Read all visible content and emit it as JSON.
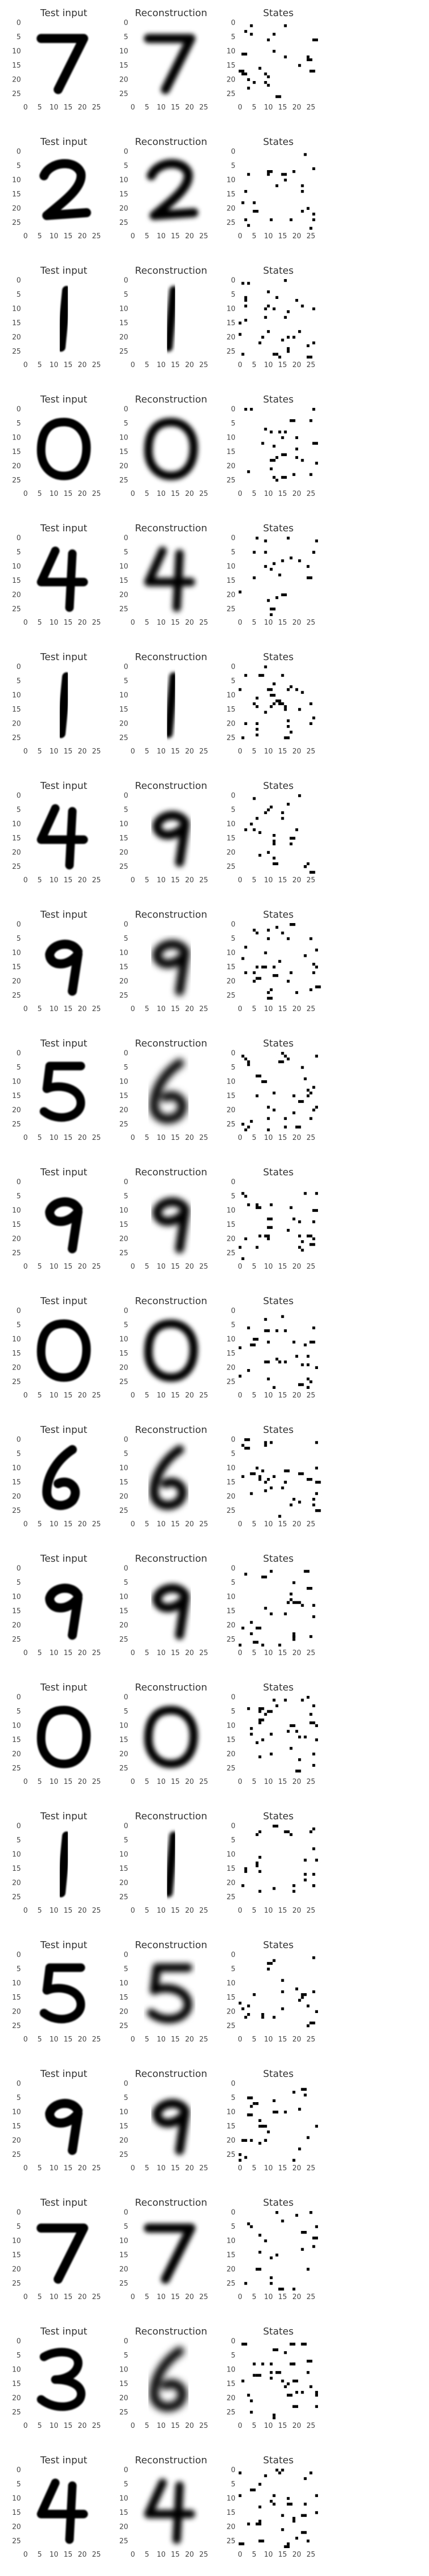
{
  "figure": {
    "layout": "20 rows x 3 panels",
    "background": "#ffffff",
    "ink_color": "#000000",
    "title_color": "#333333",
    "tick_color": "#444444"
  },
  "panel_titles": [
    "Test input",
    "Reconstruction",
    "States"
  ],
  "chart_data": {
    "type": "heatmap",
    "colormap": "gray_r",
    "grid": false,
    "axes": {
      "x_ticks": [
        0,
        5,
        10,
        15,
        20,
        25
      ],
      "y_ticks": [
        0,
        5,
        10,
        15,
        20,
        25
      ],
      "x_range": [
        0,
        27
      ],
      "y_range": [
        0,
        27
      ],
      "y_inverted": true
    },
    "rows": [
      {
        "digit": "7",
        "input": "7",
        "reconstruction": "7",
        "blur": 0.8,
        "states_seed": 101
      },
      {
        "digit": "2",
        "input": "2",
        "reconstruction": "2",
        "blur": 0.8,
        "states_seed": 202
      },
      {
        "digit": "1",
        "input": "1",
        "reconstruction": "1",
        "blur": 0.6,
        "states_seed": 303
      },
      {
        "digit": "0",
        "input": "0",
        "reconstruction": "0",
        "blur": 0.8,
        "states_seed": 404
      },
      {
        "digit": "4",
        "input": "4",
        "reconstruction": "4",
        "blur": 0.9,
        "states_seed": 505
      },
      {
        "digit": "1",
        "input": "1",
        "reconstruction": "1",
        "blur": 0.6,
        "states_seed": 606
      },
      {
        "digit": "4",
        "input": "4",
        "reconstruction": "9",
        "blur": 0.9,
        "states_seed": 707
      },
      {
        "digit": "9",
        "input": "9",
        "reconstruction": "9",
        "blur": 1.1,
        "states_seed": 808
      },
      {
        "digit": "5",
        "input": "5",
        "reconstruction": "6",
        "blur": 1.2,
        "states_seed": 909
      },
      {
        "digit": "9",
        "input": "9",
        "reconstruction": "9",
        "blur": 1.0,
        "states_seed": 1010
      },
      {
        "digit": "0",
        "input": "0",
        "reconstruction": "0",
        "blur": 0.8,
        "states_seed": 1111
      },
      {
        "digit": "6",
        "input": "6",
        "reconstruction": "6",
        "blur": 1.0,
        "states_seed": 1212
      },
      {
        "digit": "9",
        "input": "9",
        "reconstruction": "9",
        "blur": 0.9,
        "states_seed": 1313
      },
      {
        "digit": "0",
        "input": "0",
        "reconstruction": "0",
        "blur": 0.8,
        "states_seed": 1414
      },
      {
        "digit": "1",
        "input": "1",
        "reconstruction": "1",
        "blur": 0.6,
        "states_seed": 1515
      },
      {
        "digit": "5",
        "input": "5",
        "reconstruction": "5",
        "blur": 1.0,
        "states_seed": 1616
      },
      {
        "digit": "9",
        "input": "9",
        "reconstruction": "9",
        "blur": 0.9,
        "states_seed": 1717
      },
      {
        "digit": "7",
        "input": "7",
        "reconstruction": "7",
        "blur": 0.8,
        "states_seed": 1818
      },
      {
        "digit": "3",
        "input": "3",
        "reconstruction": "6",
        "blur": 1.2,
        "states_seed": 1919
      },
      {
        "digit": "4",
        "input": "4",
        "reconstruction": "4",
        "blur": 0.9,
        "states_seed": 2020
      }
    ]
  }
}
